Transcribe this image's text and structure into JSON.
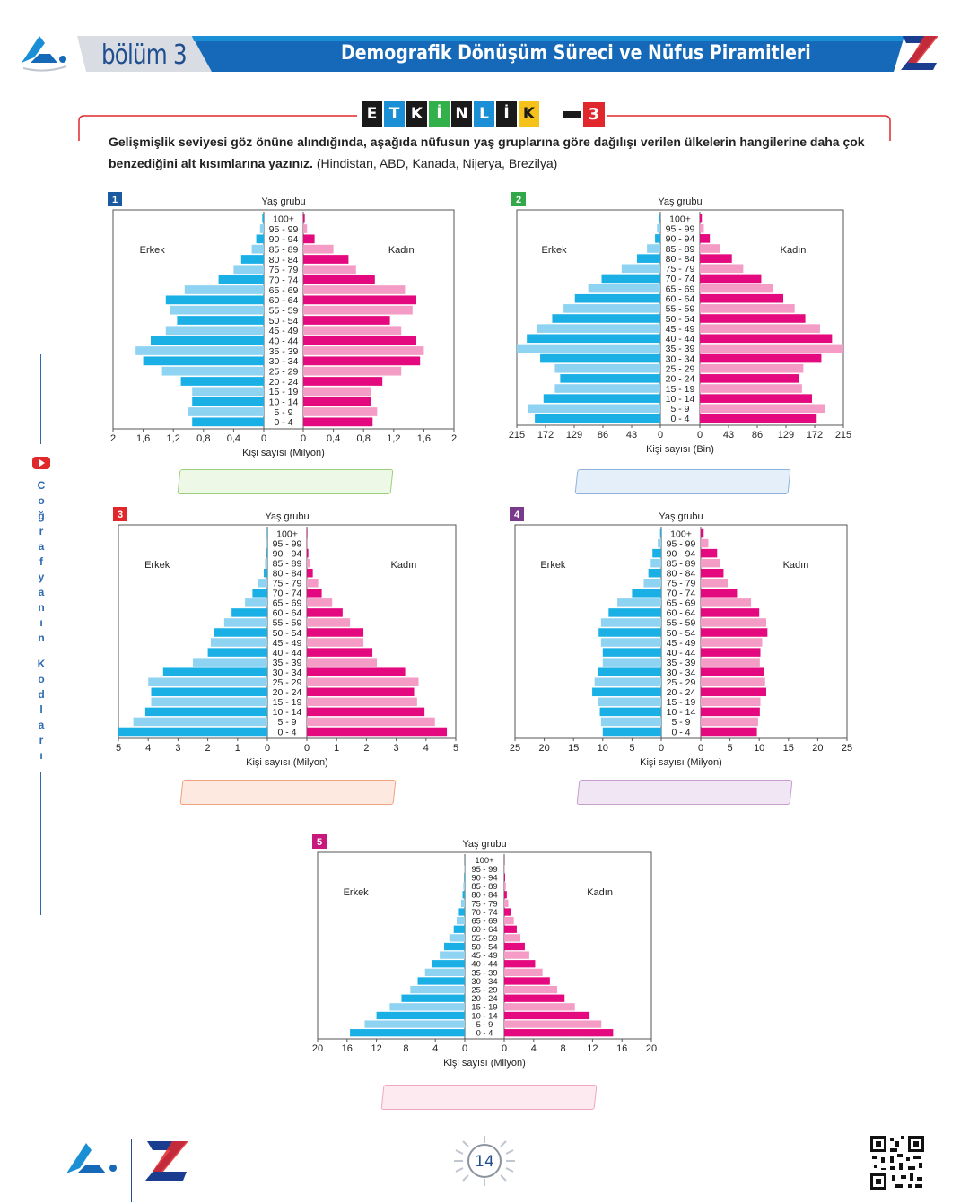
{
  "header": {
    "section": "bölüm 3",
    "title": "Demografik Dönüşüm Süreci ve Nüfus Piramitleri",
    "accent": "#1b8fd6",
    "title_bar": "#1669b8"
  },
  "activity": {
    "letters": [
      "E",
      "T",
      "K",
      "İ",
      "N",
      "L",
      "İ",
      "K"
    ],
    "letter_colors": [
      "#1a1a1a",
      "#1b8fd6",
      "#1a1a1a",
      "#32b049",
      "#1a1a1a",
      "#1b8fd6",
      "#1a1a1a",
      "#f4c21a"
    ],
    "number": "3"
  },
  "instruction": {
    "bold": "Gelişmişlik seviyesi göz önüne alındığında, aşağıda nüfusun yaş gruplarına göre dağılışı verilen ülkelerin hangilerine daha çok benzediğini alt kısımlarına yazınız.",
    "normal": " (Hindistan, ABD, Kanada, Nijerya, Brezilya)"
  },
  "side_label": "Coğrafyanın Kodları",
  "page_number": "14",
  "answer_boxes": [
    {
      "fill": "#eef8e6",
      "stroke": "#9ccf7c"
    },
    {
      "fill": "#e5effa",
      "stroke": "#8fb3da"
    },
    {
      "fill": "#fde9df",
      "stroke": "#f0a27c"
    },
    {
      "fill": "#f1e6f3",
      "stroke": "#c79ccf"
    },
    {
      "fill": "#fdeaf1",
      "stroke": "#f0a5c1"
    }
  ],
  "chart_data": [
    {
      "id": "1",
      "badge": "1",
      "badge_color": "#1a5aa0",
      "type": "population-pyramid",
      "title": "Yaş grubu",
      "xlabel": "Kişi sayısı (Milyon)",
      "left_label": "Erkek",
      "right_label": "Kadın",
      "max": 2,
      "ticks_left": [
        "2",
        "1,6",
        "1,2",
        "0,8",
        "0,4",
        "0"
      ],
      "ticks_right": [
        "0",
        "0,4",
        "0,8",
        "1,2",
        "1,6",
        "2"
      ],
      "age_groups": [
        "100+",
        "95 - 99",
        "90 - 94",
        "85 - 89",
        "80 - 84",
        "75 - 79",
        "70 - 74",
        "65 - 69",
        "60 - 64",
        "55 - 59",
        "50 - 54",
        "45 - 49",
        "40 - 44",
        "35 - 39",
        "30 - 34",
        "25 - 29",
        "20 - 24",
        "15 - 19",
        "10 - 14",
        "5 - 9",
        "0 - 4"
      ],
      "male": [
        0.02,
        0.05,
        0.1,
        0.16,
        0.3,
        0.4,
        0.6,
        1.05,
        1.3,
        1.25,
        1.15,
        1.3,
        1.5,
        1.7,
        1.6,
        1.35,
        1.1,
        0.95,
        0.95,
        1.0,
        0.95
      ],
      "female": [
        0.02,
        0.05,
        0.15,
        0.4,
        0.6,
        0.7,
        0.95,
        1.35,
        1.5,
        1.45,
        1.15,
        1.3,
        1.5,
        1.6,
        1.55,
        1.3,
        1.05,
        0.9,
        0.9,
        0.98,
        0.92
      ]
    },
    {
      "id": "2",
      "badge": "2",
      "badge_color": "#32a84a",
      "type": "population-pyramid",
      "title": "Yaş grubu",
      "xlabel": "Kişi sayısı (Bin)",
      "left_label": "Erkek",
      "right_label": "Kadın",
      "max": 215,
      "ticks_left": [
        "215",
        "172",
        "129",
        "86",
        "43",
        "0"
      ],
      "ticks_right": [
        "0",
        "43",
        "86",
        "129",
        "172",
        "215"
      ],
      "age_groups": [
        "100+",
        "95 - 99",
        "90 - 94",
        "85 - 89",
        "80 - 84",
        "75 - 79",
        "70 - 74",
        "65 - 69",
        "60 - 64",
        "55 - 59",
        "50 - 54",
        "45 - 49",
        "40 - 44",
        "35 - 39",
        "30 - 34",
        "25 - 29",
        "20 - 24",
        "15 - 19",
        "10 - 14",
        "5 - 9",
        "0 - 4"
      ],
      "male": [
        2,
        5,
        8,
        20,
        35,
        58,
        88,
        108,
        128,
        145,
        162,
        185,
        200,
        215,
        180,
        158,
        150,
        158,
        175,
        198,
        188
      ],
      "female": [
        3,
        6,
        15,
        30,
        48,
        65,
        92,
        110,
        125,
        142,
        158,
        180,
        198,
        215,
        182,
        155,
        148,
        153,
        168,
        188,
        175
      ]
    },
    {
      "id": "3",
      "badge": "3",
      "badge_color": "#e0282c",
      "type": "population-pyramid",
      "title": "Yaş grubu",
      "xlabel": "Kişi sayısı (Milyon)",
      "left_label": "Erkek",
      "right_label": "Kadın",
      "max": 5,
      "ticks_left": [
        "5",
        "4",
        "3",
        "2",
        "1",
        "0"
      ],
      "ticks_right": [
        "0",
        "1",
        "2",
        "3",
        "4",
        "5"
      ],
      "age_groups": [
        "100+",
        "95 - 99",
        "90 - 94",
        "85 - 89",
        "80 - 84",
        "75 - 79",
        "70 - 74",
        "65 - 69",
        "60 - 64",
        "55 - 59",
        "50 - 54",
        "45 - 49",
        "40 - 44",
        "35 - 39",
        "30 - 34",
        "25 - 29",
        "20 - 24",
        "15 - 19",
        "10 - 14",
        "5 - 9",
        "0 - 4"
      ],
      "male": [
        0.02,
        0.03,
        0.05,
        0.08,
        0.12,
        0.3,
        0.5,
        0.75,
        1.2,
        1.45,
        1.8,
        1.9,
        2.0,
        2.5,
        3.5,
        4.0,
        3.9,
        3.9,
        4.1,
        4.5,
        5.0
      ],
      "female": [
        0.02,
        0.03,
        0.05,
        0.1,
        0.2,
        0.38,
        0.5,
        0.85,
        1.2,
        1.45,
        1.9,
        1.9,
        2.2,
        2.35,
        3.3,
        3.75,
        3.6,
        3.7,
        3.95,
        4.3,
        4.7
      ]
    },
    {
      "id": "4",
      "badge": "4",
      "badge_color": "#7a3a8c",
      "type": "population-pyramid",
      "title": "Yaş grubu",
      "xlabel": "Kişi sayısı (Milyon)",
      "left_label": "Erkek",
      "right_label": "Kadın",
      "max": 25,
      "ticks_left": [
        "25",
        "20",
        "15",
        "10",
        "5",
        "0"
      ],
      "ticks_right": [
        "0",
        "5",
        "10",
        "15",
        "20",
        "25"
      ],
      "age_groups": [
        "100+",
        "95 - 99",
        "90 - 94",
        "85 - 89",
        "80 - 84",
        "75 - 79",
        "70 - 74",
        "65 - 69",
        "60 - 64",
        "55 - 59",
        "50 - 54",
        "45 - 49",
        "40 - 44",
        "35 - 39",
        "30 - 34",
        "25 - 29",
        "20 - 24",
        "15 - 19",
        "10 - 14",
        "5 - 9",
        "0 - 4"
      ],
      "male": [
        0.2,
        0.6,
        1.5,
        1.8,
        2.2,
        3.0,
        5.0,
        7.5,
        9.0,
        10.3,
        10.7,
        10.3,
        10.0,
        10.0,
        10.8,
        11.4,
        11.8,
        10.8,
        10.5,
        10.3,
        10.0
      ],
      "female": [
        0.5,
        1.3,
        2.8,
        3.3,
        3.9,
        4.6,
        6.2,
        8.6,
        10.0,
        11.2,
        11.4,
        10.5,
        10.2,
        10.1,
        10.8,
        11.0,
        11.2,
        10.2,
        10.1,
        9.8,
        9.6
      ]
    },
    {
      "id": "5",
      "badge": "5",
      "badge_color": "#c8187e",
      "type": "population-pyramid",
      "title": "Yaş grubu",
      "xlabel": "Kişi sayısı (Milyon)",
      "left_label": "Erkek",
      "right_label": "Kadın",
      "max": 20,
      "ticks_left": [
        "20",
        "16",
        "12",
        "8",
        "4",
        "0"
      ],
      "ticks_right": [
        "0",
        "4",
        "8",
        "12",
        "16",
        "20"
      ],
      "age_groups": [
        "100+",
        "95 - 99",
        "90 - 94",
        "85 - 89",
        "80 - 84",
        "75 - 79",
        "70 - 74",
        "65 - 69",
        "60 - 64",
        "55 - 59",
        "50 - 54",
        "45 - 49",
        "40 - 44",
        "35 - 39",
        "30 - 34",
        "25 - 29",
        "20 - 24",
        "15 - 19",
        "10 - 14",
        "5 - 9",
        "0 - 4"
      ],
      "male": [
        0.02,
        0.05,
        0.1,
        0.2,
        0.3,
        0.5,
        0.8,
        1.1,
        1.5,
        2.1,
        2.8,
        3.4,
        4.4,
        5.4,
        6.4,
        7.4,
        8.6,
        10.2,
        12.0,
        13.6,
        15.6
      ],
      "female": [
        0.02,
        0.05,
        0.12,
        0.22,
        0.35,
        0.55,
        0.9,
        1.3,
        1.7,
        2.2,
        2.8,
        3.4,
        4.2,
        5.2,
        6.2,
        7.2,
        8.2,
        9.6,
        11.6,
        13.2,
        14.8
      ]
    }
  ]
}
